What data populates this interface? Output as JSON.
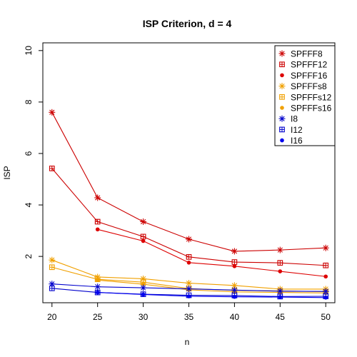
{
  "chart_data": {
    "type": "line",
    "title": "ISP Criterion, d = 4",
    "xlabel": "n",
    "ylabel": "ISP",
    "x": [
      20,
      25,
      30,
      35,
      40,
      45,
      50
    ],
    "xticks": [
      "20",
      "25",
      "30",
      "35",
      "40",
      "45",
      "50"
    ],
    "yticks": [
      "2",
      "4",
      "6",
      "8",
      "10"
    ],
    "xlim": [
      19,
      51
    ],
    "ylim": [
      0.2,
      10.3
    ],
    "grid": false,
    "legend_position": "top-right",
    "series": [
      {
        "name": "SPFFF8",
        "color": "#cc0000",
        "marker": "asterisk",
        "values": [
          7.6,
          4.28,
          3.35,
          2.67,
          2.2,
          2.25,
          2.33
        ]
      },
      {
        "name": "SPFFF12",
        "color": "#cc0000",
        "marker": "boxed-plus",
        "values": [
          5.42,
          3.35,
          2.77,
          1.98,
          1.78,
          1.75,
          1.65
        ]
      },
      {
        "name": "SPFFF16",
        "color": "#dd0000",
        "marker": "dot",
        "values": [
          null,
          3.05,
          2.6,
          1.76,
          1.62,
          1.42,
          1.22
        ]
      },
      {
        "name": "SPFFFs8",
        "color": "#f0a000",
        "marker": "asterisk",
        "values": [
          1.86,
          1.2,
          1.13,
          0.96,
          0.87,
          0.73,
          0.73
        ]
      },
      {
        "name": "SPFFFs12",
        "color": "#f0a000",
        "marker": "boxed-plus",
        "values": [
          1.58,
          1.11,
          1.0,
          0.75,
          0.68,
          0.66,
          0.63
        ]
      },
      {
        "name": "SPFFFs16",
        "color": "#f0a000",
        "marker": "dot",
        "values": [
          null,
          1.08,
          0.92,
          0.7,
          0.62,
          0.6,
          0.58
        ]
      },
      {
        "name": "I8",
        "color": "#0000cc",
        "marker": "asterisk",
        "values": [
          0.93,
          0.82,
          0.78,
          0.74,
          0.69,
          0.65,
          0.64
        ]
      },
      {
        "name": "I12",
        "color": "#0000cc",
        "marker": "boxed-plus",
        "values": [
          0.76,
          0.6,
          0.53,
          0.49,
          0.48,
          0.44,
          0.45
        ]
      },
      {
        "name": "I16",
        "color": "#0000ee",
        "marker": "dot",
        "values": [
          null,
          0.6,
          0.52,
          0.45,
          0.43,
          0.42,
          0.4
        ]
      }
    ]
  }
}
